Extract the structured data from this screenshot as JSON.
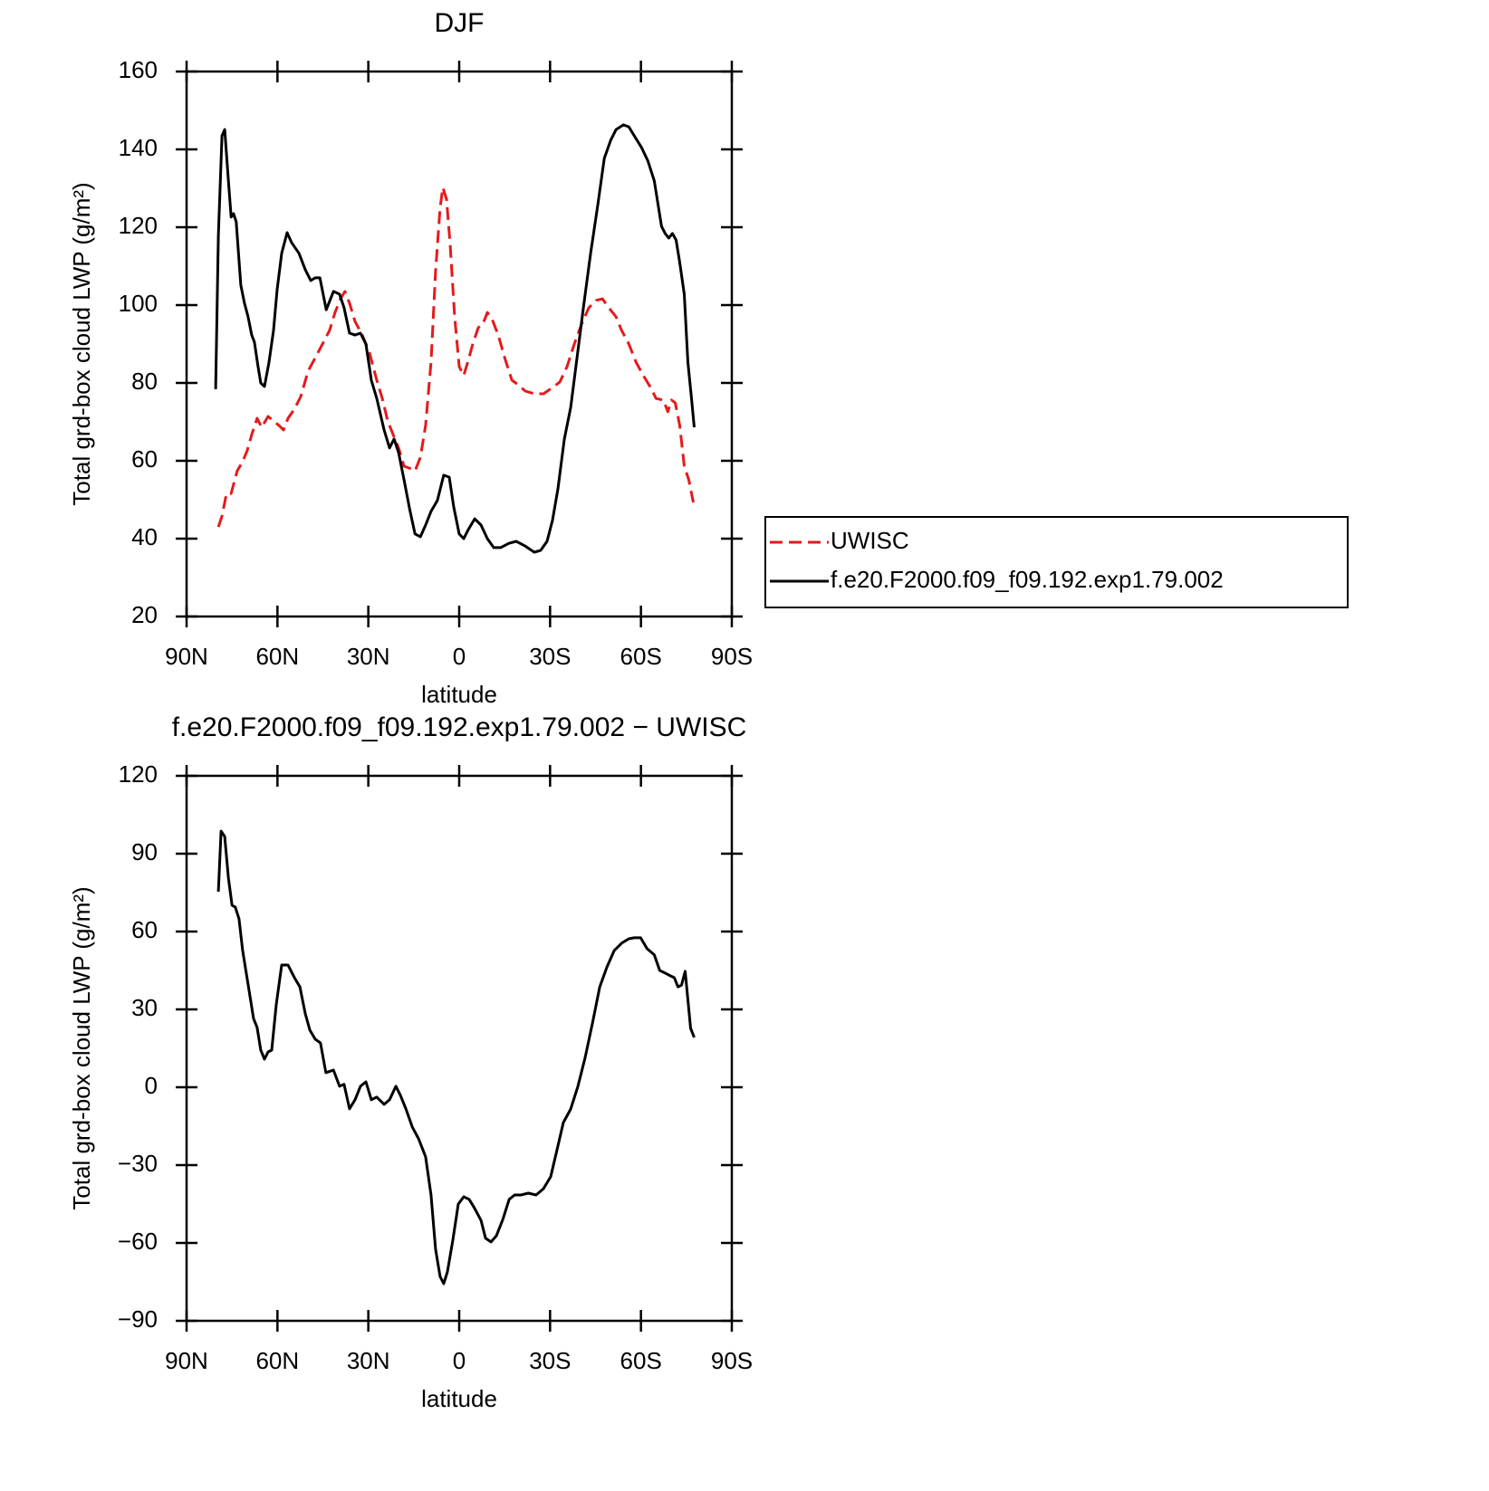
{
  "chart_data": [
    {
      "type": "line",
      "title": "DJF",
      "xlabel": "latitude",
      "ylabel": "Total grd-box cloud LWP (g/m²)",
      "xlim": [
        90,
        -90
      ],
      "xticks": [
        {
          "value": 90,
          "label": "90N"
        },
        {
          "value": 60,
          "label": "60N"
        },
        {
          "value": 30,
          "label": "30N"
        },
        0,
        {
          "value": -30,
          "label": "30S"
        },
        {
          "value": -60,
          "label": "60S"
        },
        {
          "value": -90,
          "label": "90S"
        }
      ],
      "ylim": [
        20,
        160
      ],
      "yticks": [
        20,
        40,
        60,
        80,
        100,
        120,
        140,
        160
      ],
      "legend": "right",
      "series": [
        {
          "name": "UWISC",
          "color": "#e41a1c",
          "dash": true,
          "x": [
            79.5,
            78.3,
            76.8,
            75.3,
            73.3,
            71.5,
            70.0,
            68.5,
            66.7,
            65.2,
            63.1,
            61.3,
            59.5,
            58.0,
            56.5,
            54.4,
            52.3,
            49.9,
            47.5,
            44.8,
            42.8,
            41.0,
            39.2,
            37.7,
            36.2,
            34.4,
            32.0,
            29.6,
            27.2,
            25.4,
            23.6,
            21.8,
            20.0,
            18.2,
            16.4,
            14.6,
            12.8,
            11.1,
            9.3,
            7.8,
            6.3,
            5.4,
            4.2,
            3.0,
            1.5,
            0,
            -1.5,
            -3.0,
            -4.5,
            -6.3,
            -7.8,
            -9.3,
            -10.8,
            -12.9,
            -15.0,
            -17.4,
            -19.5,
            -21.8,
            -24.8,
            -27.8,
            -30.8,
            -33.2,
            -35.6,
            -38.0,
            -40.4,
            -42.8,
            -45.2,
            -47.3,
            -49.4,
            -51.8,
            -53.6,
            -56.0,
            -58.4,
            -60.8,
            -63.2,
            -65.0,
            -67.4,
            -68.9,
            -70.1,
            -71.3,
            -72.8,
            -74.3,
            -75.8,
            -77.3
          ],
          "values": [
            43,
            45.8,
            51.6,
            51.6,
            57.4,
            59.8,
            62.6,
            66.7,
            70.9,
            68.6,
            71.4,
            70.2,
            69.1,
            67.9,
            70.9,
            73.3,
            76.5,
            83,
            86.5,
            90.5,
            93.5,
            98.1,
            101.6,
            103.5,
            100.5,
            95.8,
            92.3,
            87.7,
            80.7,
            76,
            70.2,
            66.7,
            63.3,
            58.6,
            58.1,
            57.4,
            60.9,
            69.1,
            85.3,
            108.6,
            124.9,
            130.2,
            127.2,
            115.6,
            97,
            84.2,
            81.9,
            85.8,
            90,
            94.2,
            95.1,
            98.1,
            96.5,
            92.3,
            86.5,
            80.7,
            79.5,
            77.9,
            77.2,
            77.2,
            78.8,
            80.2,
            84.2,
            90,
            95.1,
            99.3,
            101.2,
            101.6,
            99.3,
            97,
            93.5,
            90,
            85.3,
            81.9,
            78.8,
            76,
            75.6,
            72.6,
            75.6,
            74.9,
            69.1,
            58.6,
            55.1,
            49.3
          ]
        },
        {
          "name": "f.e20.F2000.f09_f09.192.exp1.79.002",
          "color": "#000000",
          "dash": false,
          "x": [
            80.4,
            79.5,
            78.3,
            77.4,
            76.2,
            75.3,
            74.5,
            73.6,
            72.1,
            70.9,
            69.7,
            68.5,
            67.6,
            66.4,
            65.5,
            64.3,
            62.8,
            61.3,
            60.1,
            58.6,
            56.8,
            55.3,
            52.9,
            50.8,
            49.0,
            47.5,
            46.0,
            43.9,
            41.5,
            39.5,
            38.0,
            36.2,
            34.4,
            32.6,
            30.8,
            29.0,
            27.2,
            24.8,
            23.0,
            21.5,
            20.0,
            18.2,
            16.4,
            14.6,
            12.8,
            11.1,
            9.3,
            7.2,
            5.1,
            3.3,
            1.8,
            0,
            -1.5,
            -3.0,
            -5.1,
            -7.2,
            -9.3,
            -11.4,
            -13.7,
            -16.4,
            -18.8,
            -21.8,
            -24.8,
            -26.9,
            -29.0,
            -30.8,
            -32.6,
            -34.7,
            -36.8,
            -38.9,
            -41.0,
            -43.4,
            -45.8,
            -47.9,
            -50.0,
            -51.8,
            -54.2,
            -56.0,
            -57.8,
            -60.2,
            -62.3,
            -64.4,
            -66.8,
            -68.0,
            -69.2,
            -70.4,
            -71.6,
            -72.8,
            -74.3,
            -75.5,
            -76.7,
            -77.6
          ],
          "values": [
            78.4,
            117.9,
            143.5,
            145.1,
            131.9,
            122.6,
            123.5,
            121.4,
            105.1,
            100.5,
            97,
            92.3,
            90.5,
            84.2,
            80,
            79.1,
            85.3,
            93.5,
            104,
            113.3,
            118.6,
            116,
            113.3,
            109.1,
            106.3,
            107,
            107,
            98.8,
            103.5,
            102.8,
            99.3,
            92.8,
            92.3,
            92.8,
            90,
            80.7,
            76,
            67.9,
            63.3,
            65.6,
            62.1,
            55.1,
            47.7,
            41.2,
            40.5,
            43.5,
            47,
            49.8,
            56.3,
            55.8,
            48.1,
            41.2,
            40,
            42.3,
            45.1,
            43.5,
            40,
            37.7,
            37.7,
            38.8,
            39.3,
            38.1,
            36.5,
            37,
            39.3,
            44.7,
            52.8,
            65.6,
            73.7,
            86.5,
            99.3,
            113.3,
            126,
            137.7,
            142.3,
            145.1,
            146.3,
            145.8,
            143.5,
            140.5,
            137,
            131.9,
            120.2,
            118.4,
            117.2,
            118.4,
            116.7,
            110.9,
            102.8,
            85.3,
            76,
            68.6
          ]
        }
      ]
    },
    {
      "type": "line",
      "title": "f.e20.F2000.f09_f09.192.exp1.79.002 − UWISC",
      "xlabel": "latitude",
      "ylabel": "Total grd-box cloud LWP (g/m²)",
      "xlim": [
        90,
        -90
      ],
      "xticks": [
        {
          "value": 90,
          "label": "90N"
        },
        {
          "value": 60,
          "label": "60N"
        },
        {
          "value": 30,
          "label": "30N"
        },
        0,
        {
          "value": -30,
          "label": "30S"
        },
        {
          "value": -60,
          "label": "60S"
        },
        {
          "value": -90,
          "label": "90S"
        }
      ],
      "ylim": [
        -90,
        120
      ],
      "yticks": [
        {
          "value": -90,
          "label": "−90"
        },
        {
          "value": -60,
          "label": "−60"
        },
        {
          "value": -30,
          "label": "−30"
        },
        0,
        30,
        60,
        90,
        120
      ],
      "series": [
        {
          "color": "#000000",
          "dash": false,
          "x": [
            79.5,
            78.6,
            77.4,
            76.2,
            75.0,
            73.9,
            72.7,
            71.5,
            70.3,
            69.1,
            67.9,
            66.7,
            65.5,
            64.3,
            63.1,
            61.9,
            60.4,
            58.6,
            56.5,
            54.4,
            52.6,
            50.8,
            49.3,
            47.5,
            45.8,
            44.0,
            41.5,
            39.5,
            38.0,
            36.2,
            34.4,
            32.6,
            30.8,
            29.0,
            27.2,
            24.8,
            23.0,
            20.9,
            19.4,
            17.6,
            15.5,
            13.4,
            11.1,
            9.3,
            7.8,
            6.3,
            5.1,
            3.9,
            2.1,
            0.3,
            -1.5,
            -3.3,
            -5.1,
            -7.2,
            -8.7,
            -10.5,
            -12.3,
            -14.4,
            -16.5,
            -18.3,
            -20.4,
            -22.8,
            -25.4,
            -27.8,
            -30.2,
            -32.3,
            -34.4,
            -36.8,
            -39.2,
            -41.6,
            -44.0,
            -46.4,
            -48.8,
            -51.2,
            -53.6,
            -56.0,
            -57.8,
            -59.9,
            -62.0,
            -64.4,
            -66.2,
            -68.0,
            -69.8,
            -71.0,
            -72.2,
            -73.4,
            -74.6,
            -76.4,
            -77.6
          ],
          "values": [
            75.4,
            98.7,
            96.6,
            80.6,
            70.1,
            69.4,
            64.9,
            52.7,
            44,
            35.3,
            26.5,
            23,
            14.3,
            10.8,
            13.6,
            14.3,
            31.8,
            47.1,
            47.1,
            42.2,
            38.7,
            28.3,
            22,
            18.5,
            17.1,
            5.6,
            6.6,
            0.4,
            1.1,
            -8.3,
            -4.8,
            0.4,
            2.1,
            -4.8,
            -3.8,
            -6.6,
            -4.8,
            0.4,
            -3.1,
            -8.3,
            -15.3,
            -19.9,
            -26.8,
            -41.5,
            -62.4,
            -72.9,
            -75.7,
            -71.1,
            -58.9,
            -45,
            -42.2,
            -43.2,
            -46.7,
            -51.3,
            -58.2,
            -59.6,
            -57.2,
            -50.9,
            -43.2,
            -41.5,
            -41.5,
            -40.8,
            -41.5,
            -39.1,
            -34.5,
            -24.1,
            -13.6,
            -8.4,
            0.4,
            11.5,
            24.8,
            38.7,
            46.4,
            52.7,
            55.5,
            57.2,
            57.6,
            57.6,
            53.4,
            51,
            45,
            44,
            42.9,
            42.2,
            38.7,
            39.4,
            44.7,
            22.7,
            19.2
          ]
        }
      ]
    }
  ]
}
